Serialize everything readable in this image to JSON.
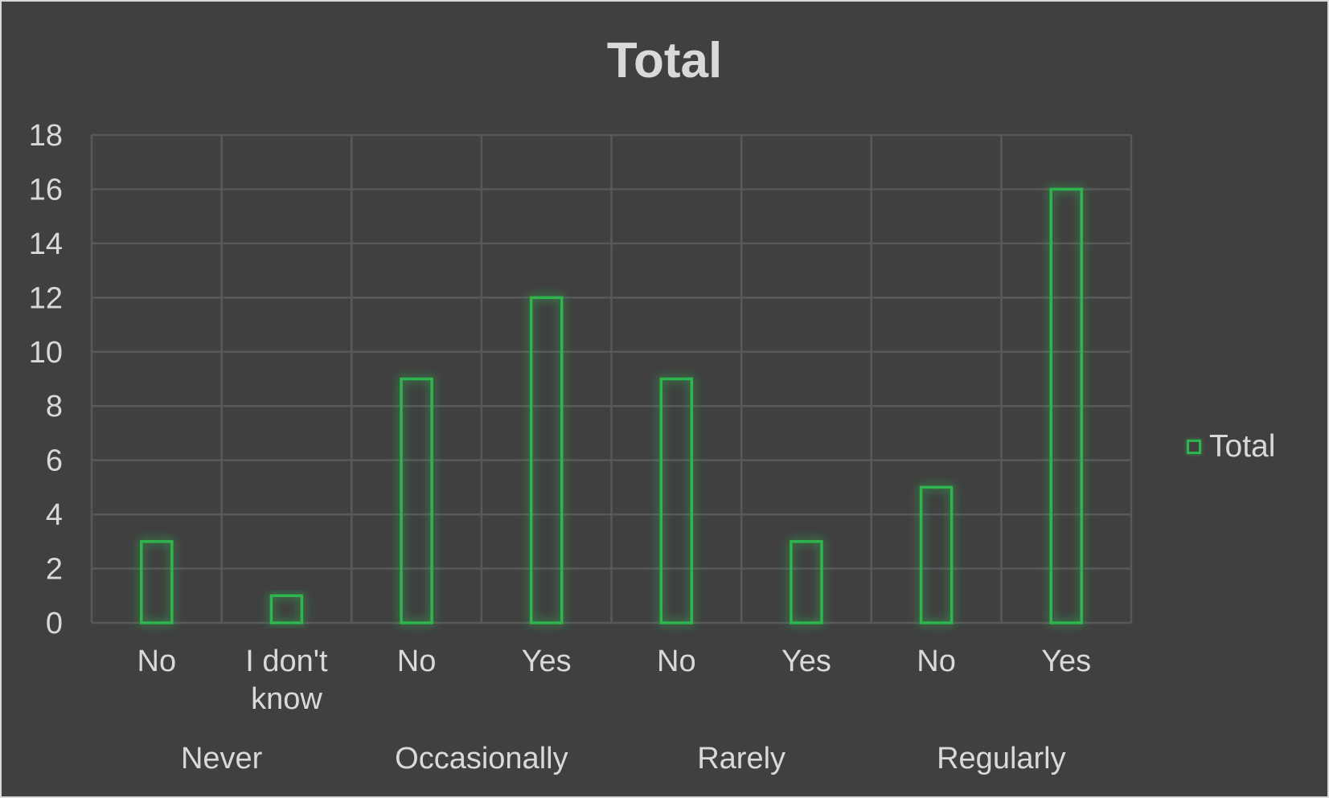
{
  "chart_data": {
    "type": "bar",
    "title": "Total",
    "groups": [
      {
        "label": "Never",
        "categories": [
          "No",
          "I don't know"
        ]
      },
      {
        "label": "Occasionally",
        "categories": [
          "No",
          "Yes"
        ]
      },
      {
        "label": "Rarely",
        "categories": [
          "No",
          "Yes"
        ]
      },
      {
        "label": "Regularly",
        "categories": [
          "No",
          "Yes"
        ]
      }
    ],
    "categories": [
      "No",
      "I don't know",
      "No",
      "Yes",
      "No",
      "Yes",
      "No",
      "Yes"
    ],
    "series": [
      {
        "name": "Total",
        "values": [
          3,
          1,
          9,
          12,
          9,
          3,
          5,
          16
        ]
      }
    ],
    "ylim": [
      0,
      18
    ],
    "yticks": [
      0,
      2,
      4,
      6,
      8,
      10,
      12,
      14,
      16,
      18
    ],
    "xlabel": "",
    "ylabel": "",
    "grid": true,
    "legend": {
      "position": "right",
      "entries": [
        "Total"
      ]
    },
    "colors": {
      "background": "#404040",
      "bar_outline": "#2fb54e",
      "gridline": "#595959",
      "text": "#d9d9d9"
    }
  }
}
